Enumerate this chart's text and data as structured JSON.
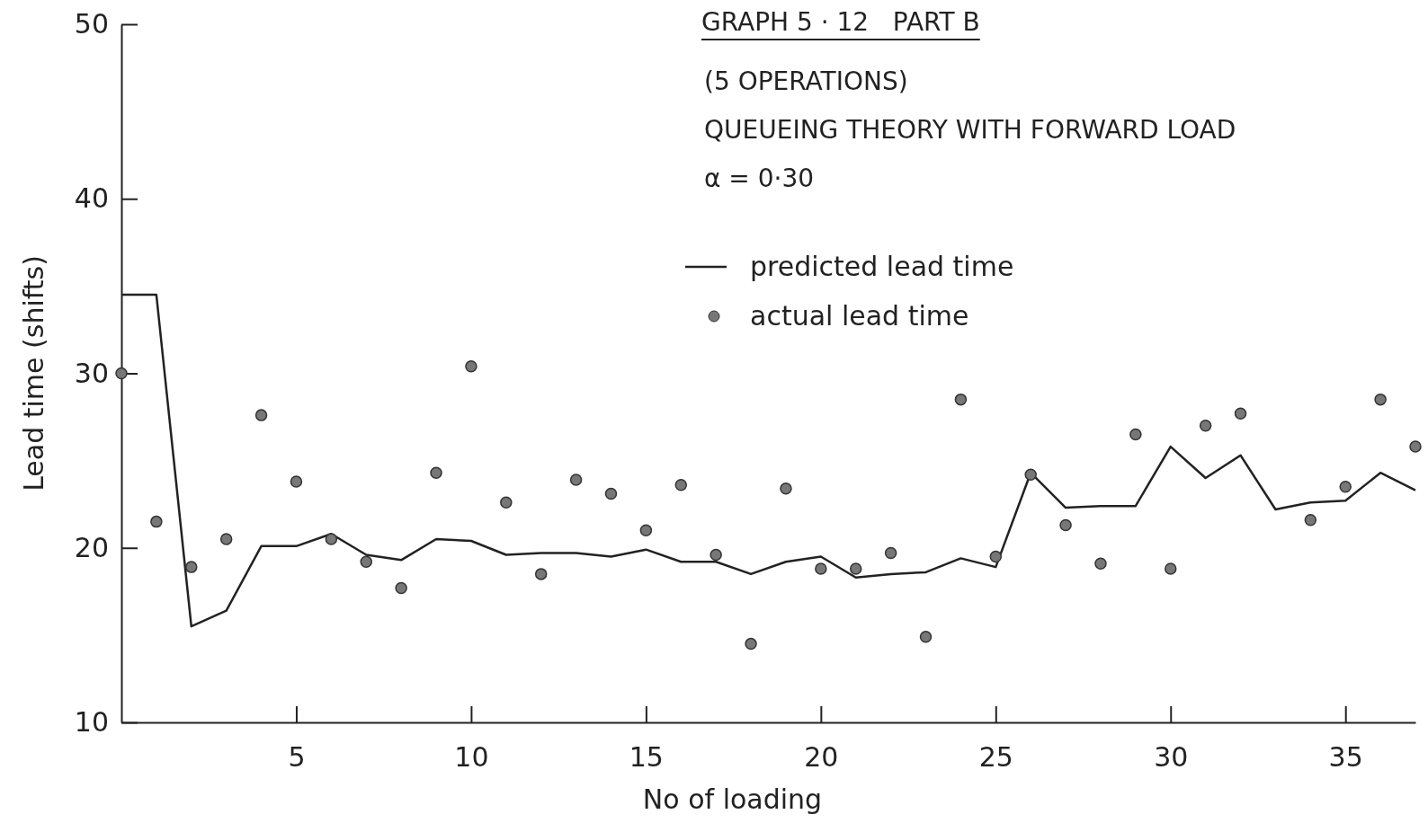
{
  "chart_data": {
    "type": "line",
    "title": "GRAPH 5 · 12   PART B",
    "subtitle": "(5 OPERATIONS)\nQUEUEING THEORY WITH FORWARD LOAD\nα = 0·30",
    "xlabel": "No of loading",
    "ylabel": "Lead time (shifts)",
    "xlim": [
      0,
      37
    ],
    "xticks": [
      5,
      10,
      15,
      20,
      25,
      30,
      35
    ],
    "ylim": [
      10,
      50
    ],
    "yticks": [
      10,
      20,
      30,
      40,
      50
    ],
    "legend": "top right",
    "grid": false,
    "series": [
      {
        "name": "predicted lead time",
        "color": "#222222",
        "marker": "none",
        "x": [
          0,
          1,
          2,
          3,
          4,
          5,
          6,
          7,
          8,
          9,
          10,
          11,
          12,
          13,
          14,
          15,
          16,
          17,
          18,
          19,
          20,
          21,
          22,
          23,
          24,
          25,
          26,
          27,
          28,
          29,
          30,
          31,
          32,
          33,
          34,
          35,
          36,
          37
        ],
        "values": [
          34.5,
          34.5,
          15.5,
          16.4,
          20.1,
          20.1,
          20.8,
          19.6,
          19.3,
          20.5,
          20.4,
          19.6,
          19.7,
          19.7,
          19.5,
          19.9,
          19.2,
          19.2,
          18.5,
          19.2,
          19.5,
          18.3,
          18.5,
          18.6,
          19.4,
          18.9,
          24.3,
          22.3,
          22.4,
          22.4,
          25.8,
          24,
          25.3,
          22.2,
          22.6,
          22.7,
          24.3,
          23.3
        ]
      },
      {
        "name": "actual lead time",
        "type": "scatter",
        "color": "#777777",
        "marker": "circle",
        "x": [
          0,
          1,
          2,
          3,
          4,
          5,
          6,
          7,
          8,
          9,
          10,
          11,
          12,
          13,
          14,
          15,
          16,
          17,
          18,
          19,
          20,
          21,
          22,
          23,
          24,
          25,
          26,
          27,
          28,
          29,
          30,
          31,
          32,
          34,
          35,
          36,
          37
        ],
        "values": [
          30,
          21.5,
          18.9,
          20.5,
          27.6,
          23.8,
          20.5,
          19.2,
          17.7,
          24.3,
          30.4,
          22.6,
          18.5,
          23.9,
          23.1,
          21,
          23.6,
          19.6,
          14.5,
          23.4,
          18.8,
          18.8,
          19.7,
          14.9,
          28.5,
          19.5,
          24.2,
          21.3,
          19.1,
          26.5,
          18.8,
          27,
          27.7,
          21.6,
          23.5,
          28.5,
          25.8
        ]
      }
    ]
  }
}
